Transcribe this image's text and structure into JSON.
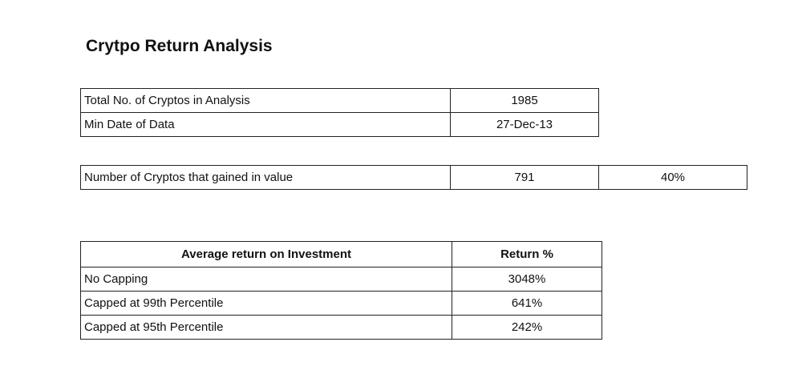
{
  "title": "Crytpo Return Analysis",
  "summary": {
    "rows": [
      [
        "Total No. of Cryptos in Analysis",
        "1985"
      ],
      [
        "Min Date of Data",
        "27-Dec-13"
      ]
    ]
  },
  "gained": {
    "row": [
      "Number of Cryptos that gained in value",
      "791",
      "40%"
    ]
  },
  "returns": {
    "header": [
      "Average return on Investment",
      "Return %"
    ],
    "rows": [
      [
        "No Capping",
        "3048%"
      ],
      [
        "Capped at 99th Percentile",
        "641%"
      ],
      [
        "Capped at 95th Percentile",
        "242%"
      ]
    ]
  }
}
